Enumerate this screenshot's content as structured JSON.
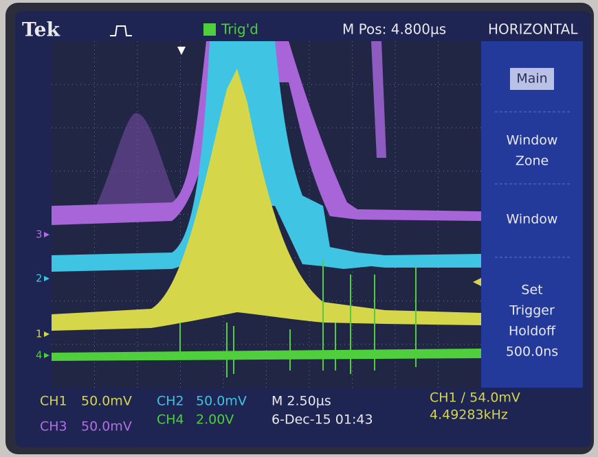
{
  "header": {
    "brand": "Tek",
    "trigger_status": "Trig'd",
    "position": "M Pos: 4.800µs",
    "menu_title": "HORIZONTAL"
  },
  "menu": [
    {
      "lines": [
        "Main"
      ]
    },
    {
      "lines": [
        "Window",
        "Zone"
      ]
    },
    {
      "lines": [
        "Window"
      ]
    },
    {
      "lines": [
        "Set",
        "Trigger",
        "Holdoff",
        "500.0ns"
      ]
    }
  ],
  "channel_markers": [
    "3",
    "2",
    "1",
    "4"
  ],
  "status": {
    "ch1": {
      "label": "CH1",
      "scale": "50.0mV"
    },
    "ch2": {
      "label": "CH2",
      "scale": "50.0mV"
    },
    "ch3": {
      "label": "CH3",
      "scale": "50.0mV"
    },
    "ch4": {
      "label": "CH4",
      "scale": "2.00V"
    },
    "timebase": "M 2.50µs",
    "datetime": "6-Dec-15 01:43",
    "trigger": "CH1 ∕ 54.0mV",
    "frequency": "4.49283kHz"
  }
}
